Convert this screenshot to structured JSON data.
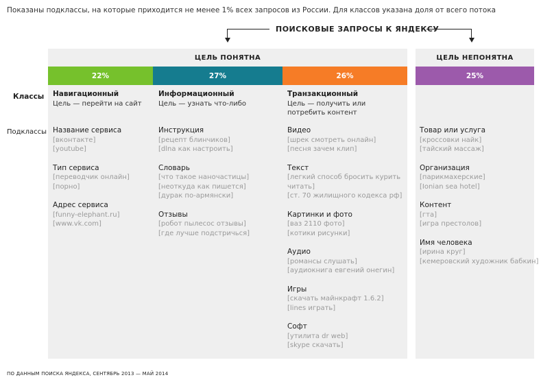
{
  "intro": "Показаны подклассы, на которые приходится не менее 1% всех запросов из России. Для классов указана доля от всего потока",
  "title": "ПОИСКОВЫЕ ЗАПРОСЫ К ЯНДЕКСУ",
  "groups": {
    "clear": "ЦЕЛЬ ПОНЯТНА",
    "unclear": "ЦЕЛЬ НЕПОНЯТНА"
  },
  "row_labels": {
    "classes": "Классы",
    "subclasses": "Подклассы"
  },
  "colors": {
    "navigational": "#76c12c",
    "informational": "#157c8f",
    "transactional": "#f67c26",
    "unclear": "#9c5aab",
    "panel": "#efefef"
  },
  "columns": [
    {
      "share": "22%",
      "name": "Навигационный",
      "desc": "Цель — перейти на сайт",
      "subclasses": [
        {
          "name": "Название сервиса",
          "queries": [
            "[вконтакте]",
            "[youtube]"
          ]
        },
        {
          "name": "Тип сервиса",
          "queries": [
            "[переводчик онлайн]",
            "[порно]"
          ]
        },
        {
          "name": "Адрес сервиса",
          "queries": [
            "[funny-elephant.ru]",
            "[www.vk.com]"
          ]
        }
      ]
    },
    {
      "share": "27%",
      "name": "Информационный",
      "desc": "Цель — узнать что-либо",
      "subclasses": [
        {
          "name": "Инструкция",
          "queries": [
            "[рецепт блинчиков]",
            "[dlna как настроить]"
          ]
        },
        {
          "name": "Словарь",
          "queries": [
            "[что такое наночастицы]",
            "[неоткуда как пишется]",
            "[дурак по-армянски]"
          ]
        },
        {
          "name": "Отзывы",
          "queries": [
            "[робот пылесос отзывы]",
            "[где лучше подстричься]"
          ]
        }
      ]
    },
    {
      "share": "26%",
      "name": "Транзакционный",
      "desc": "Цель — получить или потребить контент",
      "subclasses": [
        {
          "name": "Видео",
          "queries": [
            "[шрек смотреть онлайн]",
            "[песня зачем клип]"
          ]
        },
        {
          "name": "Текст",
          "queries": [
            "[легкий способ бросить курить",
            "читать]",
            "[ст. 70 жилищного кодекса рф]"
          ]
        },
        {
          "name": "Картинки и фото",
          "queries": [
            "[ваз 2110 фото]",
            "[котики рисунки]"
          ]
        },
        {
          "name": "Аудио",
          "queries": [
            "[романсы слушать]",
            "[аудиокнига евгений онегин]"
          ]
        },
        {
          "name": "Игры",
          "queries": [
            "[скачать майнкрафт 1.6.2]",
            "[lines играть]"
          ]
        },
        {
          "name": "Софт",
          "queries": [
            "[утилита dr web]",
            "[skype скачать]"
          ]
        }
      ]
    },
    {
      "share": "25%",
      "name": "",
      "desc": "",
      "subclasses": [
        {
          "name": "Товар или услуга",
          "queries": [
            "[кроссовки найк]",
            "[тайский массаж]"
          ]
        },
        {
          "name": "Организация",
          "queries": [
            "[парикмахерские]",
            "[Ionian sea hotel]"
          ]
        },
        {
          "name": "Контент",
          "queries": [
            "[гта]",
            "[игра престолов]"
          ]
        },
        {
          "name": "Имя человека",
          "queries": [
            "[ирина круг]",
            "[кемеровский художник бабкин]"
          ]
        }
      ]
    }
  ],
  "footer": "ПО ДАННЫМ ПОИСКА ЯНДЕКСА, СЕНТЯБРЬ 2013 — МАЙ 2014"
}
